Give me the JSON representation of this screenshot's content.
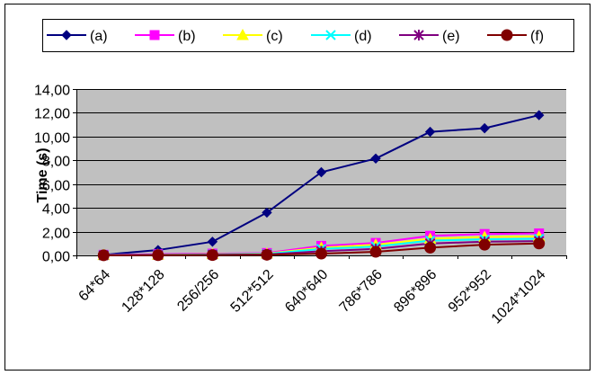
{
  "chart_data": {
    "type": "line",
    "title": "",
    "xlabel": "",
    "ylabel": "Time (s)",
    "categories": [
      "64*64",
      "128*128",
      "256/256",
      "512*512",
      "640*640",
      "786*786",
      "896*896",
      "952*952",
      "1024*1024"
    ],
    "ylim": [
      0,
      14
    ],
    "yticks": [
      0,
      2,
      4,
      6,
      8,
      10,
      12,
      14
    ],
    "ytick_labels": [
      "0,00",
      "2,00",
      "4,00",
      "6,00",
      "8,00",
      "10,00",
      "12,00",
      "14,00"
    ],
    "grid": true,
    "legend_position": "top",
    "series": [
      {
        "name": "(a)",
        "color": "#000080",
        "marker": "diamond",
        "values": [
          0.05,
          0.45,
          1.15,
          3.6,
          7.0,
          8.15,
          10.4,
          10.7,
          11.8
        ]
      },
      {
        "name": "(b)",
        "color": "#ff00ff",
        "marker": "square",
        "values": [
          0.05,
          0.1,
          0.15,
          0.2,
          0.8,
          1.05,
          1.65,
          1.8,
          1.85
        ]
      },
      {
        "name": "(c)",
        "color": "#ffff00",
        "marker": "triangle",
        "values": [
          0.03,
          0.05,
          0.1,
          0.15,
          0.65,
          0.9,
          1.4,
          1.55,
          1.6
        ]
      },
      {
        "name": "(d)",
        "color": "#00ffff",
        "marker": "x",
        "values": [
          0.02,
          0.05,
          0.08,
          0.12,
          0.55,
          0.75,
          1.25,
          1.35,
          1.4
        ]
      },
      {
        "name": "(e)",
        "color": "#800080",
        "marker": "star",
        "values": [
          0.01,
          0.03,
          0.05,
          0.08,
          0.35,
          0.55,
          1.0,
          1.15,
          1.2
        ]
      },
      {
        "name": "(f)",
        "color": "#800000",
        "marker": "circle",
        "values": [
          0.01,
          0.02,
          0.03,
          0.05,
          0.15,
          0.3,
          0.65,
          0.9,
          1.0
        ]
      }
    ],
    "colors": {
      "plot_background": "#c0c0c0",
      "gridline": "#000000",
      "frame": "#000000"
    }
  }
}
